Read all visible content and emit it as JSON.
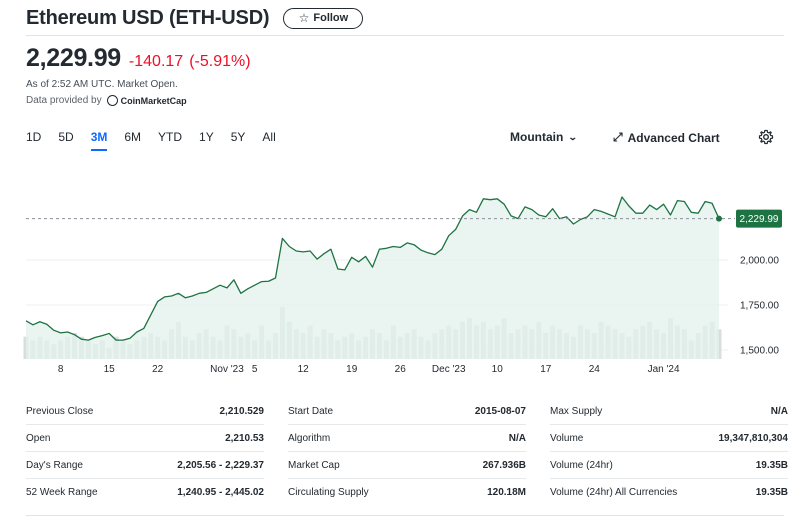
{
  "header": {
    "title": "Ethereum USD (ETH-USD)",
    "follow_label": "Follow"
  },
  "quote": {
    "price": "2,229.99",
    "change": "-140.17",
    "change_pct": "(-5.91%)",
    "as_of": "As of 2:52 AM UTC. Market Open.",
    "provider_prefix": "Data provided by",
    "provider_name": "CoinMarketCap"
  },
  "colors": {
    "negative": "#eb0f29",
    "line": "#1e7343",
    "area": "#e3f2ec",
    "active_tab": "#0f69ff"
  },
  "ranges": [
    "1D",
    "5D",
    "3M",
    "6M",
    "YTD",
    "1Y",
    "5Y",
    "All"
  ],
  "active_range": "3M",
  "controls": {
    "chart_type": "Mountain",
    "advanced_chart": "Advanced Chart"
  },
  "chart_data": {
    "type": "area",
    "ylim": [
      1450,
      2500
    ],
    "y_ticks": [
      {
        "value": 2000,
        "label": "2,000.00"
      },
      {
        "value": 1750,
        "label": "1,750.00"
      },
      {
        "value": 1500,
        "label": "1,500.00"
      }
    ],
    "x_ticks": [
      {
        "day": 2,
        "label": "8"
      },
      {
        "day": 9,
        "label": "15"
      },
      {
        "day": 16,
        "label": "22"
      },
      {
        "day": 26,
        "label": "Nov '23"
      },
      {
        "day": 30,
        "label": "5"
      },
      {
        "day": 37,
        "label": "12"
      },
      {
        "day": 44,
        "label": "19"
      },
      {
        "day": 51,
        "label": "26"
      },
      {
        "day": 58,
        "label": "Dec '23"
      },
      {
        "day": 65,
        "label": "10"
      },
      {
        "day": 72,
        "label": "17"
      },
      {
        "day": 79,
        "label": "24"
      },
      {
        "day": 89,
        "label": "Jan '24"
      }
    ],
    "last_price": 2229.99,
    "last_price_label": "2,229.99",
    "price": [
      1662,
      1640,
      1657,
      1643,
      1610,
      1595,
      1600,
      1585,
      1560,
      1555,
      1570,
      1580,
      1592,
      1555,
      1555,
      1565,
      1600,
      1620,
      1695,
      1770,
      1795,
      1800,
      1815,
      1790,
      1800,
      1815,
      1820,
      1840,
      1860,
      1845,
      1890,
      1815,
      1840,
      1860,
      1880,
      1882,
      1900,
      2120,
      2075,
      2050,
      2045,
      2050,
      2005,
      2035,
      2060,
      1950,
      1945,
      2015,
      1990,
      2020,
      1960,
      2060,
      2065,
      2075,
      2070,
      2095,
      2085,
      2055,
      2040,
      2030,
      2060,
      2135,
      2170,
      2245,
      2280,
      2265,
      2340,
      2335,
      2340,
      2310,
      2245,
      2230,
      2295,
      2280,
      2250,
      2240,
      2285,
      2230,
      2240,
      2200,
      2225,
      2240,
      2280,
      2270,
      2255,
      2240,
      2350,
      2300,
      2260,
      2260,
      2305,
      2280,
      2310,
      2250,
      2330,
      2325,
      2265,
      2260,
      2325,
      2315,
      2229.99
    ],
    "volume": [
      6,
      5,
      6,
      5,
      4,
      5,
      6,
      7,
      6,
      5,
      4,
      5,
      3,
      6,
      5,
      4,
      5,
      6,
      7,
      6,
      5,
      8,
      10,
      6,
      5,
      7,
      8,
      6,
      5,
      9,
      8,
      6,
      7,
      5,
      9,
      5,
      7,
      14,
      10,
      8,
      7,
      9,
      6,
      8,
      7,
      5,
      6,
      7,
      5,
      6,
      8,
      7,
      5,
      9,
      6,
      7,
      8,
      6,
      5,
      7,
      8,
      9,
      8,
      10,
      11,
      9,
      10,
      8,
      9,
      11,
      7,
      8,
      9,
      8,
      10,
      7,
      9,
      8,
      7,
      6,
      9,
      8,
      7,
      10,
      9,
      8,
      7,
      6,
      8,
      9,
      10,
      8,
      7,
      11,
      9,
      8,
      5,
      7,
      9,
      10,
      8
    ]
  },
  "stats": [
    [
      {
        "label": "Previous Close",
        "value": "2,210.529"
      },
      {
        "label": "Open",
        "value": "2,210.53"
      },
      {
        "label": "Day's Range",
        "value": "2,205.56 - 2,229.37"
      },
      {
        "label": "52 Week Range",
        "value": "1,240.95 - 2,445.02"
      }
    ],
    [
      {
        "label": "Start Date",
        "value": "2015-08-07"
      },
      {
        "label": "Algorithm",
        "value": "N/A"
      },
      {
        "label": "Market Cap",
        "value": "267.936B"
      },
      {
        "label": "Circulating Supply",
        "value": "120.18M"
      }
    ],
    [
      {
        "label": "Max Supply",
        "value": "N/A"
      },
      {
        "label": "Volume",
        "value": "19,347,810,304"
      },
      {
        "label": "Volume (24hr)",
        "value": "19.35B"
      },
      {
        "label": "Volume (24hr) All Currencies",
        "value": "19.35B"
      }
    ]
  ]
}
